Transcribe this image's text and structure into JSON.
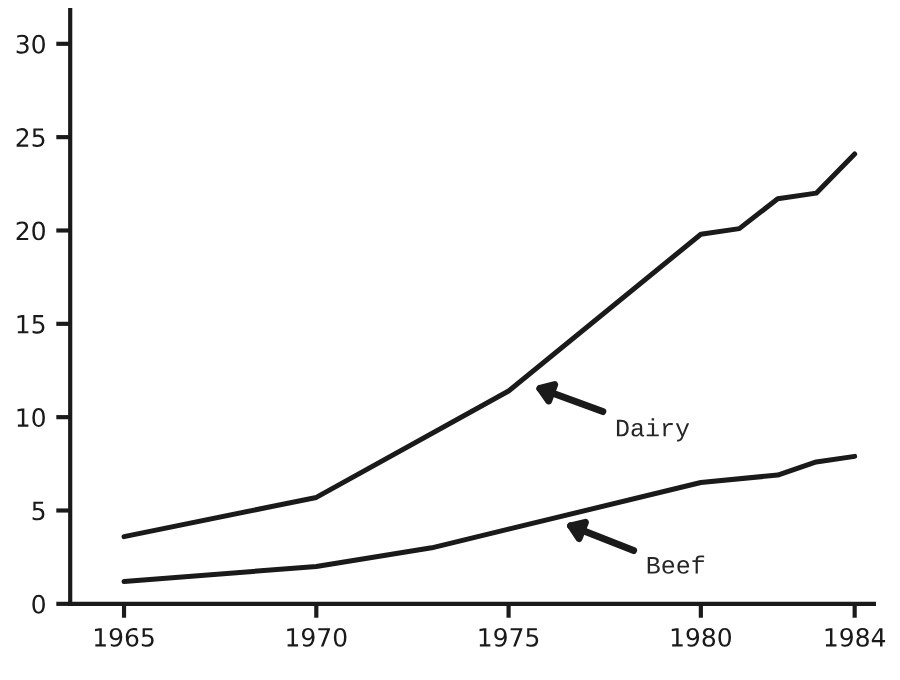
{
  "chart_data": {
    "type": "line",
    "series": [
      {
        "name": null,
        "color": "#1a1a1a",
        "x": [
          1965,
          1970,
          1975,
          1980,
          1981,
          1982,
          1983,
          1984
        ],
        "values": [
          3.6,
          5.7,
          11.4,
          19.8,
          20.1,
          21.7,
          22.0,
          24.1
        ]
      },
      {
        "name": null,
        "color": "#1a1a1a",
        "x": [
          1965,
          1970,
          1973,
          1975,
          1980,
          1982,
          1983,
          1984
        ],
        "values": [
          1.2,
          2.0,
          3.0,
          4.0,
          6.5,
          6.9,
          7.6,
          7.9
        ]
      }
    ],
    "annotations": [
      {
        "text": "Dairy",
        "x": 1975.6,
        "y": 11.7
      },
      {
        "text": "Beef",
        "x": 1976.4,
        "y": 4.35
      }
    ],
    "xlim": [
      1963.6,
      1984.5
    ],
    "xticks": [
      1965,
      1970,
      1975,
      1980,
      1984
    ],
    "ylim": [
      0,
      31.8
    ],
    "yticks": [
      0,
      5,
      10,
      15,
      20,
      25,
      30
    ],
    "grid": false,
    "marker": "none",
    "line_style": "solid"
  }
}
